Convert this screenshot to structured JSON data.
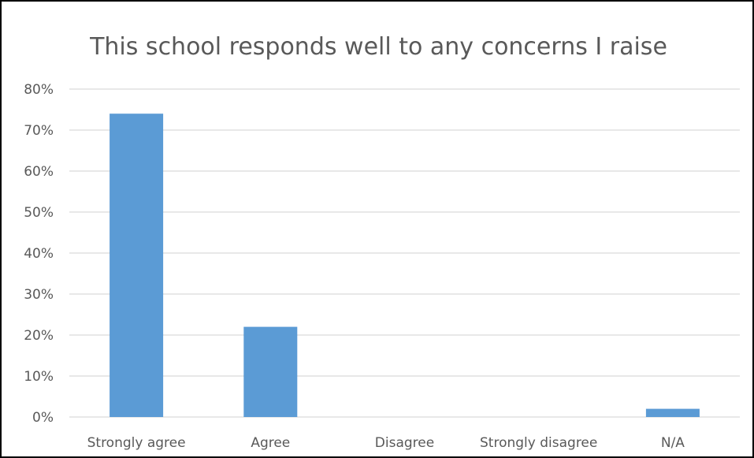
{
  "chart_data": {
    "type": "bar",
    "title": "This school responds well to any concerns I raise",
    "categories": [
      "Strongly agree",
      "Agree",
      "Disagree",
      "Strongly disagree",
      "N/A"
    ],
    "values": [
      74,
      22,
      0,
      0,
      2
    ],
    "value_unit": "%",
    "y_ticks": [
      "0%",
      "10%",
      "20%",
      "30%",
      "40%",
      "50%",
      "60%",
      "70%",
      "80%"
    ],
    "ylim": [
      0,
      80
    ],
    "grid": true,
    "legend": "none",
    "colors": {
      "bar": "#5b9bd5",
      "grid": "#d9d9d9",
      "text": "#595959",
      "border": "#000000"
    }
  }
}
